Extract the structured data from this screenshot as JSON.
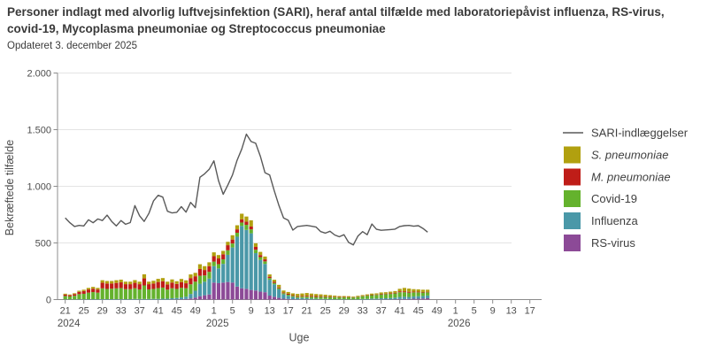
{
  "header": {
    "title": "Personer indlagt med alvorlig luftvejsinfektion (SARI), heraf antal tilfælde med laboratoriepåvist influenza, RS-virus, covid-19, Mycoplasma pneumoniae og Streptococcus pneumoniae",
    "subtitle": "Opdateret 3. december 2025"
  },
  "chart_data": {
    "type": "bar",
    "subtype": "stacked-bars-with-line-overlay",
    "xlabel": "Uge",
    "ylabel": "Bekræftede tilfælde",
    "ylim": [
      0,
      2000
    ],
    "grid": "horizontal",
    "legend_position": "right",
    "y_axis": {
      "ticks": [
        {
          "value": 0,
          "label": "0"
        },
        {
          "value": 500,
          "label": "500"
        },
        {
          "value": 1000,
          "label": "1.000"
        },
        {
          "value": 1500,
          "label": "1.500"
        },
        {
          "value": 2000,
          "label": "2.000"
        }
      ]
    },
    "x_axis": {
      "tick_week_step": 4,
      "tick_labels": [
        "21",
        "25",
        "29",
        "33",
        "37",
        "41",
        "45",
        "49",
        "1",
        "5",
        "9",
        "13",
        "17",
        "21",
        "25",
        "29",
        "33",
        "37",
        "41",
        "45",
        "49",
        "1",
        "5",
        "9",
        "13",
        "17"
      ],
      "year_markers": [
        {
          "label": "2024",
          "tick_index": 0
        },
        {
          "label": "2025",
          "tick_index": 8
        },
        {
          "label": "2026",
          "tick_index": 21
        }
      ],
      "axis_label": "Uge"
    },
    "weeks": [
      21,
      22,
      23,
      24,
      25,
      26,
      27,
      28,
      29,
      30,
      31,
      32,
      33,
      34,
      35,
      36,
      37,
      38,
      39,
      40,
      41,
      42,
      43,
      44,
      45,
      46,
      47,
      48,
      49,
      50,
      51,
      52,
      1,
      2,
      3,
      4,
      5,
      6,
      7,
      8,
      9,
      10,
      11,
      12,
      13,
      14,
      15,
      16,
      17,
      18,
      19,
      20,
      21,
      22,
      23,
      24,
      25,
      26,
      27,
      28,
      29,
      30,
      31,
      32,
      33,
      34,
      35,
      36,
      37,
      38,
      39,
      40,
      41,
      42,
      43,
      44,
      45,
      46,
      47
    ],
    "line": {
      "name": "SARI-indlæggelser",
      "color": "#595959",
      "values": [
        720,
        678,
        645,
        655,
        650,
        705,
        678,
        712,
        698,
        745,
        690,
        650,
        698,
        665,
        680,
        830,
        740,
        690,
        760,
        870,
        920,
        905,
        780,
        765,
        770,
        820,
        772,
        858,
        812,
        1080,
        1110,
        1150,
        1225,
        1050,
        930,
        1010,
        1100,
        1230,
        1330,
        1460,
        1395,
        1380,
        1265,
        1120,
        1100,
        960,
        830,
        720,
        700,
        613,
        645,
        650,
        655,
        648,
        640,
        600,
        587,
        603,
        570,
        555,
        573,
        505,
        482,
        560,
        600,
        573,
        667,
        620,
        612,
        615,
        618,
        622,
        645,
        652,
        655,
        648,
        652,
        628,
        595
      ]
    },
    "stack_order_bottom_to_top": [
      "RS-virus",
      "Influenza",
      "Covid-19",
      "M. pneumoniae",
      "S. pneumoniae"
    ],
    "series": [
      {
        "name": "S. pneumoniae",
        "italic": true,
        "color": "#b1a00f",
        "values": [
          8,
          7,
          8,
          10,
          12,
          14,
          16,
          14,
          22,
          22,
          22,
          24,
          24,
          22,
          22,
          24,
          22,
          36,
          22,
          24,
          28,
          28,
          24,
          28,
          24,
          28,
          26,
          32,
          30,
          42,
          34,
          34,
          34,
          30,
          30,
          30,
          38,
          36,
          50,
          45,
          55,
          32,
          28,
          25,
          20,
          18,
          22,
          18,
          16,
          16,
          20,
          22,
          24,
          20,
          18,
          16,
          14,
          12,
          10,
          8,
          8,
          7,
          6,
          7,
          8,
          8,
          10,
          10,
          12,
          12,
          14,
          14,
          22,
          30,
          28,
          22,
          20,
          20,
          18
        ]
      },
      {
        "name": "M. pneumoniae",
        "italic": true,
        "color": "#bf1d18",
        "values": [
          12,
          10,
          14,
          20,
          24,
          28,
          30,
          28,
          50,
          48,
          46,
          48,
          50,
          44,
          44,
          48,
          46,
          62,
          46,
          48,
          54,
          56,
          46,
          50,
          44,
          50,
          44,
          55,
          48,
          60,
          48,
          50,
          48,
          50,
          45,
          45,
          35,
          30,
          28,
          28,
          25,
          25,
          18,
          18,
          12,
          10,
          8,
          6,
          8,
          6,
          6,
          6,
          8,
          8,
          8,
          6,
          6,
          5,
          4,
          4,
          4,
          3,
          3,
          3,
          3,
          4,
          4,
          4,
          5,
          5,
          6,
          6,
          8,
          8,
          8,
          6,
          6,
          5,
          5
        ]
      },
      {
        "name": "Covid-19",
        "italic": false,
        "color": "#64b22d",
        "values": [
          30,
          26,
          32,
          45,
          48,
          58,
          62,
          58,
          95,
          90,
          92,
          95,
          98,
          88,
          88,
          95,
          85,
          120,
          85,
          88,
          95,
          98,
          80,
          88,
          80,
          85,
          75,
          85,
          80,
          70,
          55,
          60,
          40,
          38,
          40,
          40,
          35,
          35,
          30,
          45,
          35,
          30,
          25,
          22,
          15,
          12,
          10,
          10,
          10,
          10,
          10,
          12,
          14,
          16,
          16,
          18,
          18,
          18,
          18,
          16,
          16,
          18,
          16,
          20,
          24,
          28,
          30,
          32,
          34,
          36,
          36,
          38,
          42,
          40,
          38,
          36,
          34,
          30,
          28
        ]
      },
      {
        "name": "Influenza",
        "italic": false,
        "color": "#4a98a8",
        "values": [
          2,
          2,
          2,
          3,
          3,
          3,
          4,
          3,
          4,
          4,
          4,
          4,
          4,
          4,
          4,
          5,
          5,
          5,
          5,
          6,
          6,
          8,
          8,
          10,
          12,
          16,
          20,
          40,
          60,
          110,
          120,
          140,
          145,
          130,
          165,
          240,
          310,
          440,
          550,
          520,
          500,
          330,
          280,
          250,
          140,
          110,
          75,
          38,
          28,
          20,
          12,
          12,
          10,
          8,
          6,
          5,
          4,
          4,
          3,
          3,
          3,
          2,
          2,
          3,
          5,
          6,
          8,
          8,
          10,
          10,
          12,
          14,
          18,
          20,
          18,
          20,
          22,
          22,
          24
        ]
      },
      {
        "name": "RS-virus",
        "italic": false,
        "color": "#8c4a97",
        "values": [
          0,
          0,
          0,
          0,
          0,
          0,
          0,
          0,
          0,
          0,
          0,
          0,
          0,
          0,
          0,
          0,
          0,
          0,
          0,
          0,
          0,
          0,
          0,
          2,
          2,
          3,
          5,
          10,
          18,
          30,
          38,
          45,
          150,
          145,
          150,
          155,
          150,
          115,
          100,
          95,
          85,
          80,
          70,
          65,
          35,
          25,
          15,
          8,
          5,
          3,
          2,
          2,
          2,
          1,
          1,
          1,
          1,
          0,
          0,
          0,
          0,
          0,
          0,
          0,
          0,
          0,
          1,
          1,
          2,
          2,
          2,
          3,
          5,
          5,
          5,
          8,
          8,
          10,
          12
        ]
      }
    ],
    "colors": {
      "axis": "#8c8c8c",
      "grid": "#e4e4e4",
      "tick_text": "#4d4d4d",
      "legend_text": "#3f3f3f"
    }
  }
}
